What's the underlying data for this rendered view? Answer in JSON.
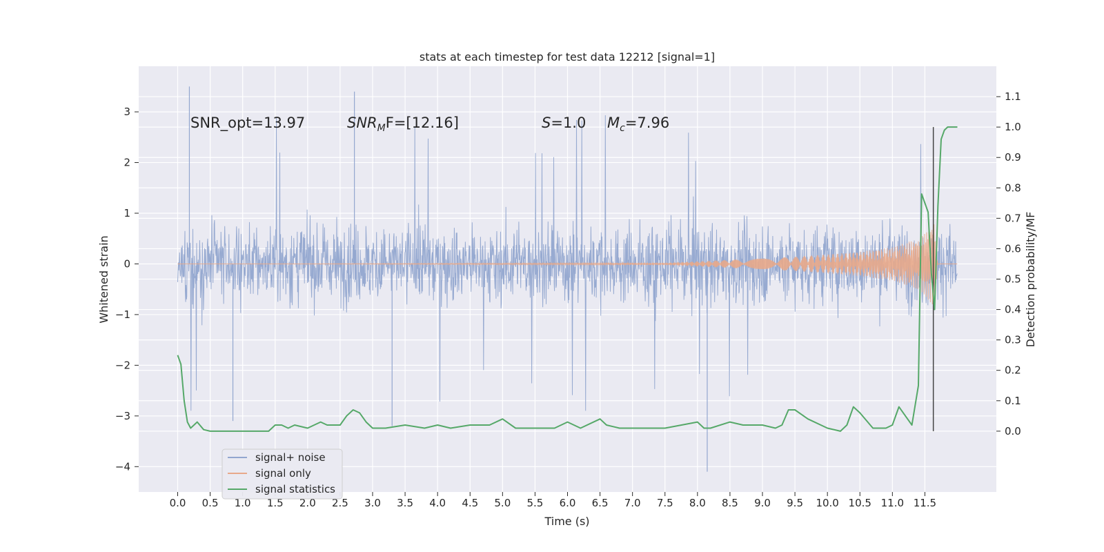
{
  "chart_data": {
    "type": "line",
    "title": "stats at each timestep for test data 12212 [signal=1]",
    "xlabel": "Time (s)",
    "ylabel": "Whitened strain",
    "ylabel_right": "Detection probability/MF",
    "xlim": [
      -0.6,
      12.6
    ],
    "ylim": [
      -4.5,
      3.9
    ],
    "ylim_right": [
      -0.2,
      1.2
    ],
    "x_ticks": [
      "0.0",
      "0.5",
      "1.0",
      "1.5",
      "2.0",
      "2.5",
      "3.0",
      "3.5",
      "4.0",
      "4.5",
      "5.0",
      "5.5",
      "6.0",
      "6.5",
      "7.0",
      "7.5",
      "8.0",
      "8.5",
      "9.0",
      "9.5",
      "10.0",
      "10.5",
      "11.0",
      "11.5"
    ],
    "y_ticks": [
      "−4",
      "−3",
      "−2",
      "−1",
      "0",
      "1",
      "2",
      "3"
    ],
    "y_ticks_right": [
      "0.0",
      "0.1",
      "0.2",
      "0.3",
      "0.4",
      "0.5",
      "0.6",
      "0.7",
      "0.8",
      "0.9",
      "1.0",
      "1.1"
    ],
    "grid": true,
    "legend_position": "lower-left",
    "annotations": {
      "snr_opt": "SNR_opt=13.97",
      "snr_mf_base": "SNR",
      "snr_mf_sub": "M",
      "snr_mf_rest": "F=[12.16]",
      "s_base": "S",
      "s_rest": "=1.0",
      "mc_base": "M",
      "mc_sub": "c",
      "mc_rest": "=7.96"
    },
    "marker_line_x": 11.63,
    "series": [
      {
        "name": "signal+ noise",
        "color": "#92a6cf",
        "description": "whitened noisy strain, roughly uniform amplitude band ~ -1.5 to 1.5 with spikes to 3.5 and -4.1",
        "x_range": [
          0.0,
          12.0
        ],
        "envelope": [
          -1.5,
          1.5
        ],
        "notable_extremes": [
          {
            "x": 0.18,
            "y": 3.5
          },
          {
            "x": 2.72,
            "y": 3.4
          },
          {
            "x": 8.15,
            "y": -4.1
          },
          {
            "x": 0.85,
            "y": -3.1
          },
          {
            "x": 3.3,
            "y": -3.2
          }
        ]
      },
      {
        "name": "signal only",
        "color": "#e8a88a",
        "description": "chirp signal, near zero until ~7.5 s then amplitude growing to ~0.8 at ~11.65 s",
        "x": [
          0.0,
          7.5,
          8.5,
          9.5,
          10.5,
          11.0,
          11.4,
          11.65,
          11.7,
          12.0
        ],
        "envelope": [
          0.0,
          0.02,
          0.08,
          0.14,
          0.24,
          0.33,
          0.5,
          0.85,
          0.0,
          0.0
        ]
      },
      {
        "name": "signal statistics",
        "color": "#55a868",
        "axis": "right",
        "x": [
          0.0,
          0.05,
          0.1,
          0.15,
          0.2,
          0.3,
          0.4,
          0.5,
          0.6,
          0.8,
          1.0,
          1.2,
          1.4,
          1.5,
          1.6,
          1.7,
          1.8,
          2.0,
          2.1,
          2.2,
          2.3,
          2.5,
          2.6,
          2.7,
          2.8,
          2.9,
          3.0,
          3.2,
          3.5,
          3.8,
          4.0,
          4.2,
          4.5,
          4.8,
          5.0,
          5.2,
          5.5,
          5.8,
          6.0,
          6.2,
          6.5,
          6.6,
          6.8,
          7.0,
          7.5,
          8.0,
          8.1,
          8.2,
          8.5,
          8.7,
          9.0,
          9.2,
          9.3,
          9.4,
          9.5,
          9.7,
          10.0,
          10.2,
          10.3,
          10.4,
          10.5,
          10.7,
          10.9,
          11.0,
          11.1,
          11.2,
          11.3,
          11.4,
          11.45,
          11.55,
          11.6,
          11.65,
          11.7,
          11.75,
          11.8,
          11.85,
          11.9,
          11.95,
          12.0
        ],
        "values": [
          0.25,
          0.22,
          0.1,
          0.03,
          0.01,
          0.03,
          0.005,
          0.0,
          0.0,
          0.0,
          0.0,
          0.0,
          0.0,
          0.02,
          0.02,
          0.01,
          0.02,
          0.01,
          0.02,
          0.03,
          0.02,
          0.02,
          0.05,
          0.07,
          0.06,
          0.03,
          0.01,
          0.01,
          0.02,
          0.01,
          0.02,
          0.01,
          0.02,
          0.02,
          0.04,
          0.01,
          0.01,
          0.01,
          0.03,
          0.01,
          0.04,
          0.02,
          0.01,
          0.01,
          0.01,
          0.03,
          0.01,
          0.01,
          0.03,
          0.02,
          0.02,
          0.01,
          0.02,
          0.07,
          0.07,
          0.04,
          0.01,
          0.0,
          0.02,
          0.08,
          0.06,
          0.01,
          0.01,
          0.02,
          0.08,
          0.05,
          0.02,
          0.15,
          0.78,
          0.72,
          0.52,
          0.4,
          0.74,
          0.96,
          0.99,
          1.0,
          1.0,
          1.0,
          1.0
        ]
      }
    ]
  }
}
